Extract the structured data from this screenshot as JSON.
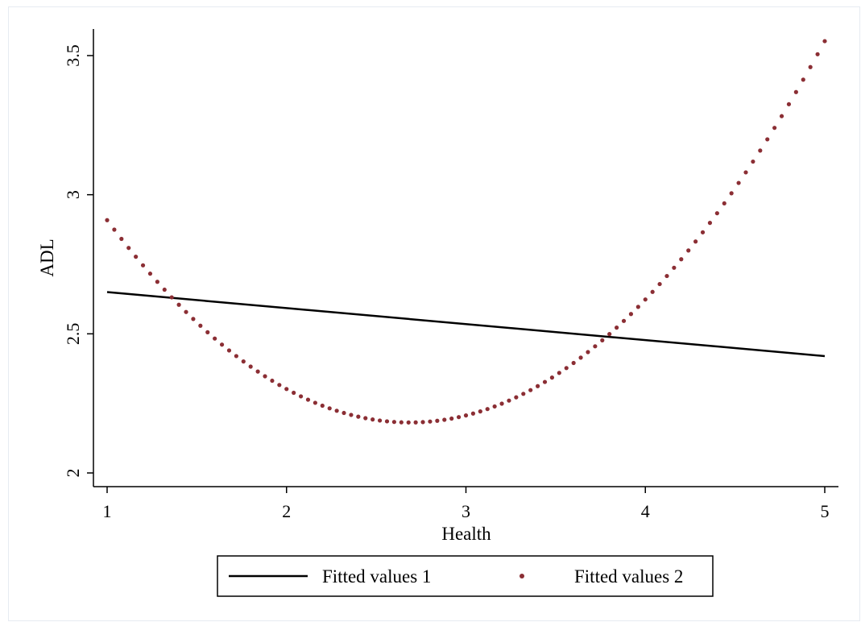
{
  "chart_data": {
    "type": "line",
    "xlabel": "Health",
    "ylabel": "ADL",
    "xlim": [
      1,
      5
    ],
    "ylim": [
      2,
      3.5
    ],
    "x_ticks": [
      1,
      2,
      3,
      4,
      5
    ],
    "y_ticks": [
      2,
      2.5,
      3,
      3.5
    ],
    "y_tick_labels": [
      "2",
      "2.5",
      "3",
      "3.5"
    ],
    "grid": false,
    "legend_position": "bottom",
    "series": [
      {
        "name": "Fitted values 1",
        "style": "solid",
        "color": "#000000",
        "x": [
          1,
          5
        ],
        "y": [
          2.65,
          2.42
        ]
      },
      {
        "name": "Fitted values 2",
        "style": "dotted",
        "color": "#8b2e34",
        "x": [
          1,
          1.5,
          2,
          2.5,
          2.7,
          3,
          3.5,
          4,
          4.5,
          5
        ],
        "y": [
          2.92,
          2.52,
          2.3,
          2.2,
          2.19,
          2.21,
          2.34,
          2.62,
          3.03,
          3.55
        ]
      }
    ]
  }
}
